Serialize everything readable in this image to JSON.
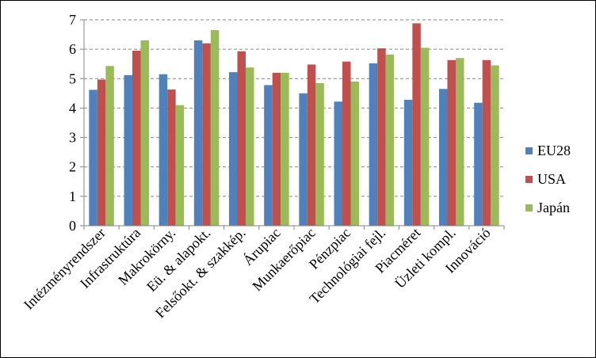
{
  "chart_data": {
    "type": "bar",
    "categories": [
      "Intézményrendszer",
      "Infrastruktúra",
      "Makrokörny.",
      "Eü. & alapokt.",
      "Felsőokt. & szakkép.",
      "Árupiac",
      "Munkaerőpiac",
      "Pénzpiac",
      "Technológiai fejl.",
      "Piacméret",
      "Üzleti kompl.",
      "Innováció"
    ],
    "series": [
      {
        "name": "EU28",
        "color": "#4f81bd",
        "values": [
          4.62,
          5.12,
          5.15,
          6.3,
          5.22,
          4.78,
          4.5,
          4.22,
          5.52,
          4.28,
          4.65,
          4.18
        ]
      },
      {
        "name": "USA",
        "color": "#c0504d",
        "values": [
          4.97,
          5.95,
          4.63,
          6.2,
          5.93,
          5.2,
          5.48,
          5.58,
          6.03,
          6.88,
          5.63,
          5.63
        ]
      },
      {
        "name": "Japán",
        "color": "#9bbb59",
        "values": [
          5.43,
          6.3,
          4.1,
          6.65,
          5.38,
          5.2,
          4.85,
          4.9,
          5.82,
          6.05,
          5.7,
          5.45
        ]
      }
    ],
    "ylim": [
      0,
      7
    ],
    "yticks": [
      0,
      1,
      2,
      3,
      4,
      5,
      6,
      7
    ],
    "grid": true,
    "legend_position": "right"
  }
}
